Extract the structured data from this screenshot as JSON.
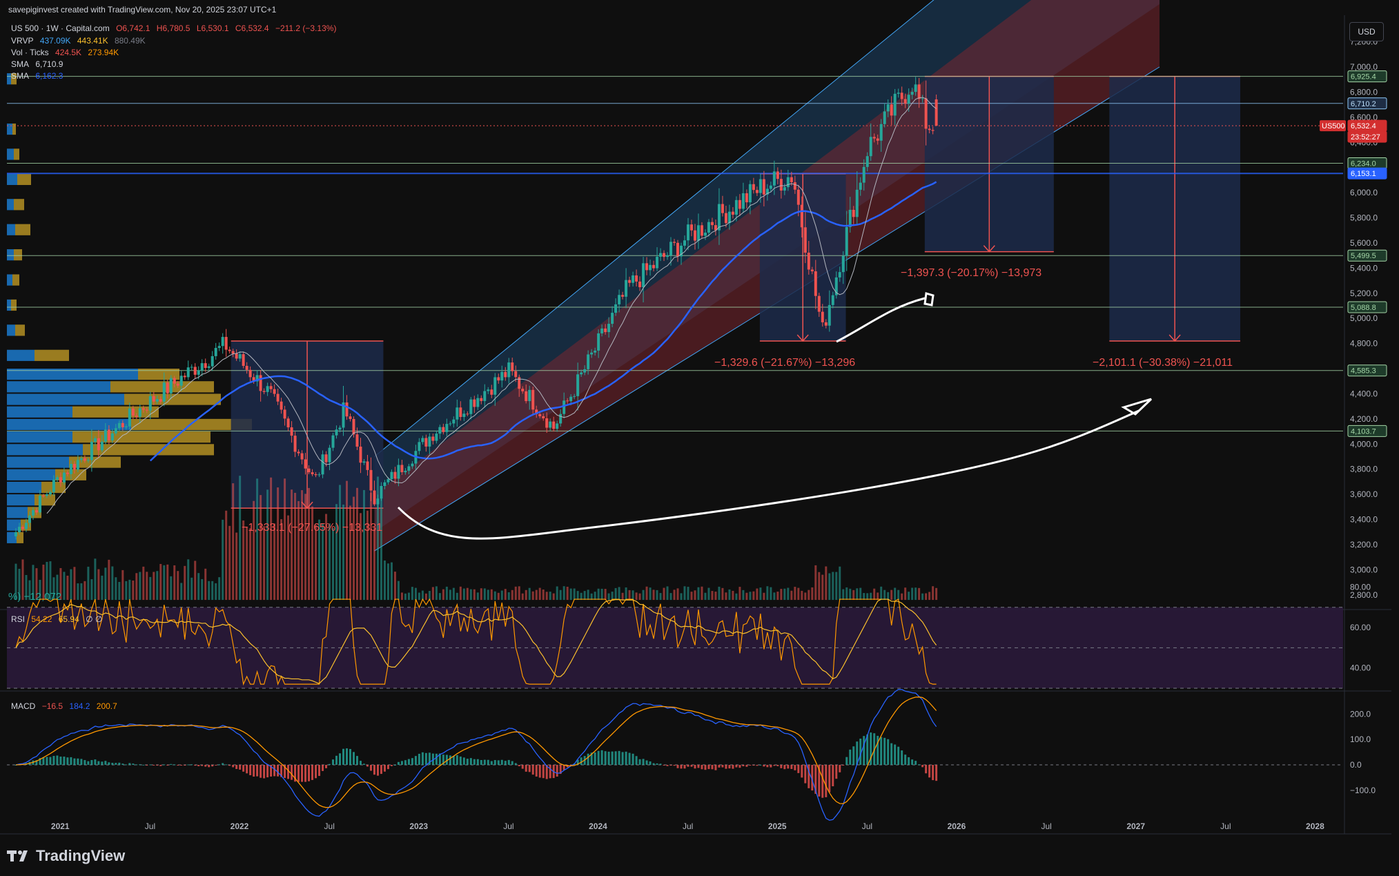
{
  "header": {
    "attribution": "savepiginvest created with TradingView.com, Nov 20, 2025 23:07 UTC+1",
    "symbol_line": {
      "symbol": "US 500 · 1W · Capital.com",
      "open": "O6,742.1",
      "high": "H6,780.5",
      "low": "L6,530.1",
      "close": "C6,532.4",
      "change": "−211.2 (−3.13%)"
    },
    "vrvp": {
      "label": "VRVP",
      "v1": "437.09K",
      "v2": "443.41K",
      "v3": "880.49K"
    },
    "vol_ticks": {
      "label": "Vol · Ticks",
      "v1": "424.5K",
      "v2": "273.94K"
    },
    "sma1": {
      "label": "SMA",
      "value": "6,710.9"
    },
    "sma2": {
      "label": "SMA",
      "value": "6,162.3"
    }
  },
  "currency_button": "USD",
  "price_axis": {
    "ticks": [
      "7,200.0",
      "7,000.0",
      "6,800.0",
      "6,600.0",
      "6,400.0",
      "6,000.0",
      "5,800.0",
      "5,600.0",
      "5,400.0",
      "5,200.0",
      "5,000.0",
      "4,800.0",
      "4,400.0",
      "4,200.0",
      "4,000.0",
      "3,800.0",
      "3,600.0",
      "3,400.0",
      "3,200.0",
      "3,000.0",
      "2,800.0"
    ],
    "badges": [
      {
        "text": "6,925.4",
        "kind": "level"
      },
      {
        "text": "6,710.2",
        "kind": "blue"
      },
      {
        "text": "6,532.4",
        "kind": "price"
      },
      {
        "text": "23:52:27",
        "kind": "price"
      },
      {
        "text": "6,234.0",
        "kind": "level"
      },
      {
        "text": "6,153.1",
        "kind": "sma"
      },
      {
        "text": "5,499.5",
        "kind": "level"
      },
      {
        "text": "5,088.8",
        "kind": "level"
      },
      {
        "text": "4,585.3",
        "kind": "level"
      },
      {
        "text": "4,103.7",
        "kind": "level"
      }
    ],
    "symbol_tag": "US500"
  },
  "annotations": {
    "drop_2022": "−1,333.1 (−27.65%) −13,331",
    "drop_2025": "−1,329.6 (−21.67%) −13,296",
    "proj_1": "−1,397.3 (−20.17%) −13,973",
    "proj_2": "−2,101.1 (−30.38%) −21,011",
    "volume_left": "%) −12,072"
  },
  "rsi": {
    "label": "RSI",
    "v1": "54.22",
    "v2": "65.94",
    "v3": "∅ ∅",
    "ticks": [
      "80.00",
      "60.00",
      "40.00"
    ]
  },
  "macd": {
    "label": "MACD",
    "v1": "−16.5",
    "v2": "184.2",
    "v3": "200.7",
    "ticks": [
      "200.0",
      "100.0",
      "0.0",
      "−100.0"
    ]
  },
  "time_axis": [
    "2021",
    "Jul",
    "2022",
    "Jul",
    "2023",
    "Jul",
    "2024",
    "Jul",
    "2025",
    "Jul",
    "2026",
    "Jul",
    "2027",
    "Jul",
    "2028"
  ],
  "footer": {
    "brand": "TradingView"
  },
  "colors": {
    "up": "#26a69a",
    "down": "#ef5350",
    "sma_blue": "#2962ff",
    "level": "#a5d6a7",
    "channel_blue": "#1e4d7a",
    "channel_red": "#7a2630",
    "projection": "#1c2a4a",
    "vp_blue": "#1e88e5",
    "vp_gold": "#c9a227",
    "rsi_bg": "#2a1a3a",
    "macd_line": "#2962ff",
    "signal_line": "#ff9800"
  },
  "chart_data": {
    "type": "candlestick",
    "title": "US 500 · 1W · Capital.com",
    "timeframe": "1W",
    "x_range": [
      "2020-09",
      "2028-03"
    ],
    "ylim": [
      2800,
      7200
    ],
    "anchor_points": [
      {
        "date": "2020-10",
        "close": 3300
      },
      {
        "date": "2021-01",
        "close": 3750
      },
      {
        "date": "2021-06",
        "close": 4250
      },
      {
        "date": "2021-12",
        "close": 4790
      },
      {
        "date": "2022-03",
        "close": 4400
      },
      {
        "date": "2022-06",
        "close": 3700
      },
      {
        "date": "2022-08",
        "close": 4280
      },
      {
        "date": "2022-10",
        "close": 3580
      },
      {
        "date": "2023-02",
        "close": 4100
      },
      {
        "date": "2023-07",
        "close": 4580
      },
      {
        "date": "2023-10",
        "close": 4130
      },
      {
        "date": "2024-03",
        "close": 5250
      },
      {
        "date": "2024-07",
        "close": 5650
      },
      {
        "date": "2024-12",
        "close": 6050
      },
      {
        "date": "2025-02",
        "close": 6140
      },
      {
        "date": "2025-04",
        "close": 4900
      },
      {
        "date": "2025-07",
        "close": 6350
      },
      {
        "date": "2025-10",
        "close": 6890
      },
      {
        "date": "2025-11",
        "close": 6532.4
      }
    ],
    "horizontal_levels": [
      6925.4,
      6710.2,
      6234.0,
      6153.1,
      5499.5,
      5088.8,
      4585.3,
      4103.7
    ],
    "last_price": 6532.4
  }
}
